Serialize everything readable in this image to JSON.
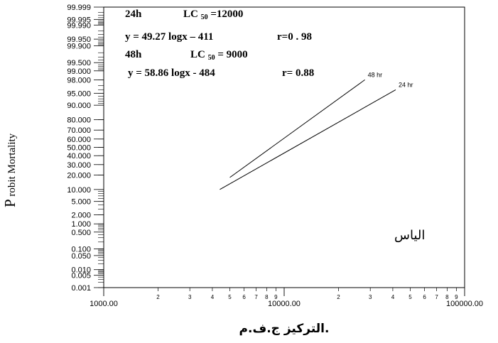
{
  "chart_data": {
    "type": "line",
    "title": "",
    "xlabel": "التركيز ج.ف.م.",
    "ylabel": {
      "first_letter": "P",
      "rest": "robit Mortality"
    },
    "x_scale": "log",
    "y_scale": "probit",
    "xlim": [
      1000,
      100000
    ],
    "ylim": [
      0.001,
      99.999
    ],
    "x_major_ticks": [
      {
        "value": 1000,
        "label": "1000.00"
      },
      {
        "value": 10000,
        "label": "10000.00"
      },
      {
        "value": 100000,
        "label": "100000.00"
      }
    ],
    "x_minor_ticks": [
      {
        "value": 2000,
        "label": "2"
      },
      {
        "value": 3000,
        "label": "3"
      },
      {
        "value": 4000,
        "label": "4"
      },
      {
        "value": 5000,
        "label": "5"
      },
      {
        "value": 6000,
        "label": "6"
      },
      {
        "value": 7000,
        "label": "7"
      },
      {
        "value": 8000,
        "label": "8"
      },
      {
        "value": 9000,
        "label": "9"
      },
      {
        "value": 20000,
        "label": "2"
      },
      {
        "value": 30000,
        "label": "3"
      },
      {
        "value": 40000,
        "label": "4"
      },
      {
        "value": 50000,
        "label": "5"
      },
      {
        "value": 60000,
        "label": "6"
      },
      {
        "value": 70000,
        "label": "7"
      },
      {
        "value": 80000,
        "label": "8"
      },
      {
        "value": 90000,
        "label": "9"
      }
    ],
    "y_ticks": [
      {
        "value": 99.999,
        "label": "99.999"
      },
      {
        "value": 99.995,
        "label": "99.995"
      },
      {
        "value": 99.99,
        "label": "99.990"
      },
      {
        "value": 99.95,
        "label": "99.950"
      },
      {
        "value": 99.9,
        "label": "99.900"
      },
      {
        "value": 99.5,
        "label": "99.500"
      },
      {
        "value": 99.0,
        "label": "99.000"
      },
      {
        "value": 98.0,
        "label": "98.000"
      },
      {
        "value": 95.0,
        "label": "95.000"
      },
      {
        "value": 90.0,
        "label": "90.000"
      },
      {
        "value": 80.0,
        "label": "80.000"
      },
      {
        "value": 70.0,
        "label": "70.000"
      },
      {
        "value": 60.0,
        "label": "60.000"
      },
      {
        "value": 50.0,
        "label": "50.000"
      },
      {
        "value": 40.0,
        "label": "40.000"
      },
      {
        "value": 30.0,
        "label": "30.000"
      },
      {
        "value": 20.0,
        "label": "20.000"
      },
      {
        "value": 10.0,
        "label": "10.000"
      },
      {
        "value": 5.0,
        "label": "5.000"
      },
      {
        "value": 2.0,
        "label": "2.000"
      },
      {
        "value": 1.0,
        "label": "1.000"
      },
      {
        "value": 0.5,
        "label": "0.500"
      },
      {
        "value": 0.1,
        "label": "0.100"
      },
      {
        "value": 0.05,
        "label": "0.050"
      },
      {
        "value": 0.01,
        "label": "0.010"
      },
      {
        "value": 0.005,
        "label": "0.005"
      },
      {
        "value": 0.001,
        "label": "0.001"
      }
    ],
    "series": [
      {
        "name": "48 hr",
        "points": [
          [
            5000,
            18
          ],
          [
            28000,
            98
          ]
        ]
      },
      {
        "name": "24 hr",
        "points": [
          [
            4400,
            10
          ],
          [
            41500,
            96
          ]
        ]
      }
    ],
    "grid": false,
    "legend": "none"
  },
  "annotations": {
    "row1": {
      "time": "24h",
      "lc_prefix": "LC",
      "lc_sub": "50",
      "lc_value": " =12000"
    },
    "row2": {
      "equation": "y =  49.27 logx – 411",
      "r": "r=0 . 98"
    },
    "row3": {
      "time": "48h",
      "lc_prefix": "LC",
      "lc_sub": "50",
      "lc_value": " =  9000"
    },
    "row4": {
      "equation": "y  =   58.86 logx - 484",
      "r": "r= 0.88"
    }
  },
  "inner_label": "الياس"
}
